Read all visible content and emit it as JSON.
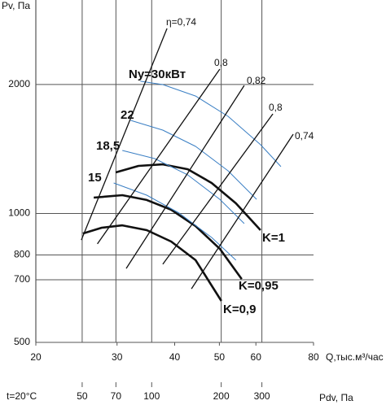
{
  "chart_data": {
    "type": "line",
    "y_label": "Pv, Па",
    "x_label": "Q,тыс.м³/час",
    "x2_label": "Pdv, Па",
    "x2_note": "t=20°C",
    "xlog": true,
    "ylog": true,
    "xlim": [
      20,
      80
    ],
    "xticks": [
      20,
      30,
      40,
      50,
      60,
      80
    ],
    "ylim": [
      500,
      3150
    ],
    "yticks": [
      500,
      700,
      800,
      1000,
      2000
    ],
    "x2lim": [
      31.5,
      502
    ],
    "x2ticks": [
      50,
      70,
      100,
      200,
      300
    ],
    "grid": true,
    "series": [
      {
        "name": "K=1",
        "color": "#111111",
        "width": 2.6,
        "x": [
          29.8,
          33.4,
          37.7,
          42.7,
          48.1,
          54.3,
          61.4
        ],
        "values": [
          1247,
          1291,
          1302,
          1268,
          1178,
          1056,
          914
        ]
      },
      {
        "name": "K=0,95",
        "color": "#111111",
        "width": 2.6,
        "x": [
          26.7,
          30.8,
          34.8,
          39.3,
          44.4,
          50.1,
          55.9
        ],
        "values": [
          1089,
          1103,
          1075,
          1020,
          934,
          827,
          703
        ]
      },
      {
        "name": "K=0,9",
        "color": "#111111",
        "width": 2.6,
        "x": [
          25.3,
          27.8,
          30.8,
          34.8,
          39.3,
          44.4,
          50.5
        ],
        "values": [
          898,
          926,
          938,
          914,
          860,
          778,
          625
        ]
      },
      {
        "name": "Nу=30кВт",
        "color": "#3a7fc4",
        "width": 1,
        "x": [
          33.7,
          37.7,
          44.4,
          52.2,
          61.4,
          68.0
        ],
        "values": [
          2035,
          1999,
          1880,
          1686,
          1447,
          1286
        ]
      },
      {
        "name": "22",
        "color": "#3a7fc4",
        "width": 1,
        "x": [
          32.1,
          37.7,
          44.4,
          52.2,
          60.2
        ],
        "values": [
          1649,
          1565,
          1434,
          1258,
          1079
        ]
      },
      {
        "name": "18,5",
        "color": "#3a7fc4",
        "width": 1,
        "x": [
          30.8,
          36.2,
          42.7,
          50.1,
          56.6
        ],
        "values": [
          1403,
          1343,
          1230,
          1079,
          947
        ]
      },
      {
        "name": "15",
        "color": "#3a7fc4",
        "width": 1,
        "x": [
          29.5,
          34.8,
          40.9,
          48.1,
          54.3
        ],
        "values": [
          1178,
          1103,
          1002,
          879,
          778
        ]
      },
      {
        "name": "η=0,74",
        "color": "#111111",
        "width": 1.3,
        "x": [
          25.1,
          38.5
        ],
        "values": [
          867,
          2703
        ]
      },
      {
        "name": "0,8",
        "color": "#111111",
        "width": 1.3,
        "x": [
          27.2,
          50.1
        ],
        "values": [
          849,
          2172
        ]
      },
      {
        "name": "0,82",
        "color": "#111111",
        "width": 1.3,
        "x": [
          31.4,
          56.6
        ],
        "values": [
          744,
          1990
        ]
      },
      {
        "name": "0,8",
        "color": "#111111",
        "width": 1.3,
        "x": [
          37.7,
          65.3
        ],
        "values": [
          761,
          1708
        ]
      },
      {
        "name": "0,74",
        "color": "#111111",
        "width": 1.3,
        "x": [
          43.5,
          72.3
        ],
        "values": [
          667,
          1531
        ]
      }
    ]
  }
}
